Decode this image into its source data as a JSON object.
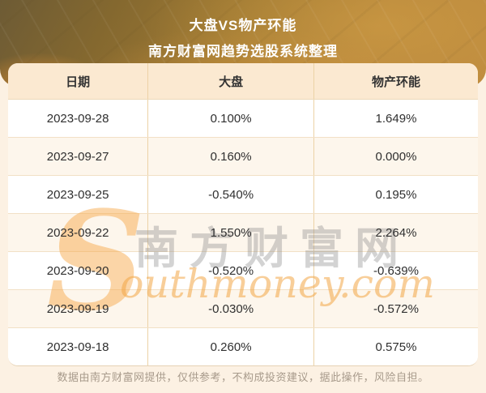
{
  "header": {
    "title_line1": "大盘VS物产环能",
    "title_line2": "南方财富网趋势选股系统整理"
  },
  "table": {
    "columns": [
      "日期",
      "大盘",
      "物产环能"
    ],
    "rows": [
      {
        "date": "2023-09-28",
        "market": "0.100%",
        "stock": "1.649%"
      },
      {
        "date": "2023-09-27",
        "market": "0.160%",
        "stock": "0.000%"
      },
      {
        "date": "2023-09-25",
        "market": "-0.540%",
        "stock": "0.195%"
      },
      {
        "date": "2023-09-22",
        "market": "1.550%",
        "stock": "2.264%"
      },
      {
        "date": "2023-09-20",
        "market": "-0.520%",
        "stock": "-0.639%"
      },
      {
        "date": "2023-09-19",
        "market": "-0.030%",
        "stock": "-0.572%"
      },
      {
        "date": "2023-09-18",
        "market": "0.260%",
        "stock": "0.575%"
      }
    ]
  },
  "watermark": {
    "s_glyph": "S",
    "cn": "南方财富网",
    "en": "outhmoney.com"
  },
  "footer": {
    "disclaimer": "数据由南方财富网提供，仅供参考，不构成投资建议，据此操作，风险自担。"
  },
  "colors": {
    "header_gold_dark": "#6d5b35",
    "header_gold_light": "#bd8a3e",
    "table_header_bg": "#fbe9d1",
    "row_alt_bg": "#fdf6ec",
    "divider_vertical": "#ecd2a6",
    "divider_horizontal": "#f2e0c6",
    "page_bg": "#fcf1e3",
    "watermark_orange": "#f6a848",
    "text_dark": "#2f2f2f",
    "footer_text": "#a79a8b"
  }
}
